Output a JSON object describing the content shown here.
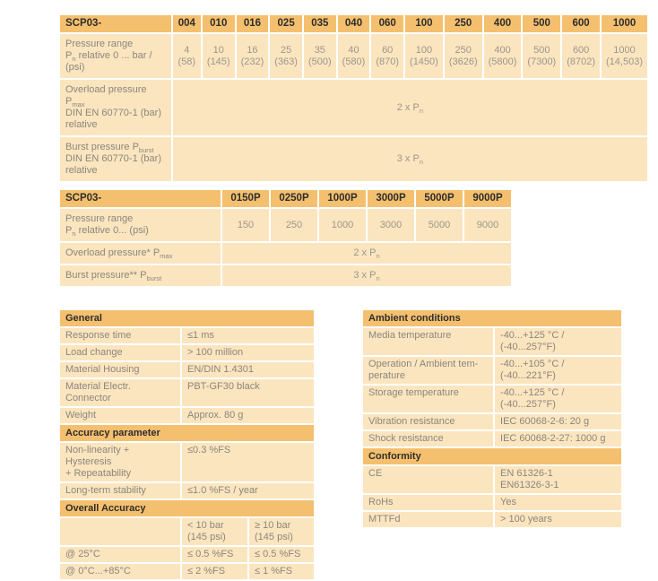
{
  "colors": {
    "header_bg": "#F4C06F",
    "row_bg": "#FBE5BF",
    "header_text": "#2E2D2B",
    "label_text": "#8B867C",
    "value_text": "#9B968C"
  },
  "table_bar": {
    "title": "SCP03-",
    "columns": [
      "004",
      "010",
      "016",
      "025",
      "035",
      "040",
      "060",
      "100",
      "250",
      "400",
      "500",
      "600",
      "1000"
    ],
    "rows": [
      {
        "label": "Pressure range\nP~n~ relative 0 ... bar / (psi)",
        "values": [
          "4\n(58)",
          "10\n(145)",
          "16\n(232)",
          "25\n(363)",
          "35\n(500)",
          "40\n(580)",
          "60\n(870)",
          "100\n(1450)",
          "250\n(3626)",
          "400\n(5800)",
          "500\n(7300)",
          "600\n(8702)",
          "1000\n(14,503)"
        ]
      },
      {
        "label": "Overload pressure P~max~\nDIN EN 60770-1 (bar)\nrelative",
        "span": "2 x P~n~"
      },
      {
        "label": "Burst pressure P~burst~\nDIN EN 60770-1 (bar)\nrelative",
        "span": "3 x P~n~"
      }
    ]
  },
  "table_psi": {
    "title": "SCP03-",
    "columns": [
      "0150P",
      "0250P",
      "1000P",
      "3000P",
      "5000P",
      "9000P"
    ],
    "rows": [
      {
        "label": "Pressure range\nP~n~ relative 0... (psi)",
        "values": [
          "150",
          "250",
          "1000",
          "3000",
          "5000",
          "9000"
        ]
      },
      {
        "label": "Overload pressure* P~max~",
        "span": "2 x P~n~"
      },
      {
        "label": "Burst pressure** P~burst~",
        "span": "3 x P~n~"
      }
    ]
  },
  "general_table": {
    "rows": [
      {
        "h": "General"
      },
      {
        "c": [
          "Response time",
          "≤1 ms"
        ]
      },
      {
        "c": [
          "Load change",
          "> 100 million"
        ]
      },
      {
        "c": [
          "Material Housing",
          "EN/DIN 1.4301"
        ]
      },
      {
        "c": [
          "Material Electr. Connector",
          "PBT-GF30 black"
        ]
      },
      {
        "c": [
          "Weight",
          "Approx. 80 g"
        ]
      },
      {
        "h": "Accuracy parameter"
      },
      {
        "c": [
          "Non-linearity + Hysteresis\n+ Repeatability",
          "≤0.3 %FS"
        ]
      },
      {
        "c": [
          "Long-term stability",
          "≤1.0 %FS / year"
        ]
      },
      {
        "h": "Overall Accuracy"
      },
      {
        "c": [
          "",
          "< 10 bar\n(145 psi)",
          "≥ 10 bar\n(145 psi)"
        ]
      },
      {
        "c": [
          "@ 25°C",
          "≤ 0.5 %FS",
          "≤ 0.5 %FS"
        ]
      },
      {
        "c": [
          "@ 0°C...+85°C",
          "≤ 2 %FS",
          "≤ 1 %FS"
        ]
      }
    ]
  },
  "ambient_table": {
    "rows": [
      {
        "h": "Ambient conditions"
      },
      {
        "c": [
          "Media temperature",
          "-40...+125 °C /\n(-40...257°F)"
        ]
      },
      {
        "c": [
          "Operation / Ambient tem-\nperature",
          "-40...+105 °C /\n(-40...221°F)"
        ]
      },
      {
        "c": [
          "Storage temperature",
          "-40...+125 °C /\n(-40...257°F)"
        ]
      },
      {
        "c": [
          "Vibration resistance",
          "IEC 60068-2-6: 20 g"
        ]
      },
      {
        "c": [
          "Shock resistance",
          "IEC 60068-2-27: 1000 g"
        ]
      },
      {
        "h": "Conformity"
      },
      {
        "c": [
          "CE",
          "EN 61326-1\nEN61326-3-1"
        ]
      },
      {
        "c": [
          "RoHs",
          "Yes"
        ]
      },
      {
        "c": [
          "MTTFd",
          "> 100 years"
        ]
      }
    ]
  }
}
